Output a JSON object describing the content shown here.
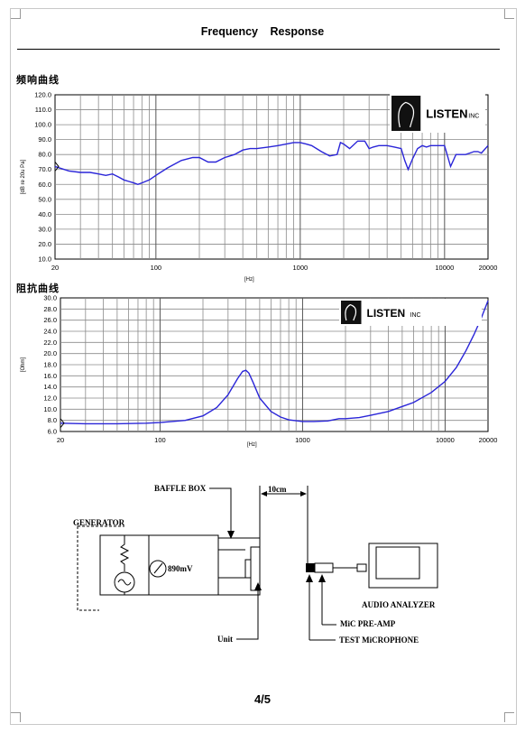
{
  "header": {
    "title": "Frequency    Response"
  },
  "sections": {
    "frequency_title": "频响曲线",
    "impedance_title": "阻抗曲线"
  },
  "logo": {
    "brand": "LISTEN",
    "suffix": "INC"
  },
  "chart_data": [
    {
      "type": "line",
      "title": "频响曲线",
      "xlabel": "[Hz]",
      "ylabel": "[dB re 20u Pa]",
      "xscale": "log",
      "xlim": [
        20,
        20000
      ],
      "ylim": [
        10,
        120
      ],
      "xticks": [
        "20",
        "100",
        "1000",
        "10000",
        "20000"
      ],
      "yticks": [
        "120.0",
        "110.0",
        "100.0",
        "90.0",
        "80.0",
        "70.0",
        "60.0",
        "50.0",
        "40.0",
        "30.0",
        "20.0",
        "10.0"
      ],
      "grid": true,
      "line_color": "#2a25d8",
      "series": [
        {
          "x": [
            20,
            25,
            30,
            35,
            40,
            45,
            50,
            55,
            60,
            65,
            70,
            75,
            80,
            90,
            100,
            120,
            150,
            180,
            200,
            230,
            260,
            300,
            350,
            400,
            450,
            500,
            600,
            700,
            800,
            900,
            1000,
            1100,
            1200,
            1400,
            1600,
            1800,
            1900,
            2000,
            2200,
            2500,
            2800,
            3000,
            3200,
            3500,
            4000,
            4500,
            5000,
            5300,
            5600,
            6000,
            6500,
            7000,
            7500,
            8000,
            9000,
            10000,
            11000,
            12000,
            13000,
            14000,
            15000,
            16000,
            17000,
            18000,
            20000
          ],
          "y": [
            72,
            69,
            68,
            68,
            67,
            66,
            67,
            65,
            63,
            62,
            61,
            60,
            61,
            63,
            66,
            71,
            76,
            78,
            78,
            75,
            75,
            78,
            80,
            83,
            84,
            84,
            85,
            86,
            87,
            88,
            88,
            87,
            86,
            82,
            79,
            80,
            88,
            87,
            84,
            89,
            89,
            84,
            85,
            86,
            86,
            85,
            84,
            76,
            70,
            77,
            84,
            86,
            85,
            86,
            86,
            86,
            72,
            80,
            80,
            80,
            81,
            82,
            82,
            81,
            86
          ]
        }
      ]
    },
    {
      "type": "line",
      "title": "阻抗曲线",
      "xlabel": "[Hz]",
      "ylabel": "[Ohm]",
      "xscale": "log",
      "xlim": [
        20,
        20000
      ],
      "ylim": [
        6,
        30
      ],
      "xticks": [
        "20",
        "100",
        "1000",
        "10000",
        "20000"
      ],
      "yticks": [
        "30.0",
        "28.0",
        "26.0",
        "24.0",
        "22.0",
        "20.0",
        "18.0",
        "16.0",
        "14.0",
        "12.0",
        "10.0",
        "8.0",
        "6.0"
      ],
      "grid": true,
      "line_color": "#2a25d8",
      "series": [
        {
          "x": [
            20,
            30,
            50,
            80,
            100,
            150,
            200,
            250,
            300,
            350,
            380,
            400,
            420,
            450,
            500,
            600,
            700,
            800,
            1000,
            1200,
            1500,
            1800,
            2000,
            2500,
            3000,
            4000,
            5000,
            6000,
            8000,
            10000,
            12000,
            14000,
            16000,
            18000,
            20000
          ],
          "y": [
            7.5,
            7.4,
            7.4,
            7.5,
            7.6,
            8.0,
            8.8,
            10.3,
            12.6,
            15.5,
            16.8,
            17.0,
            16.5,
            14.8,
            12.0,
            9.6,
            8.6,
            8.1,
            7.8,
            7.8,
            7.9,
            8.3,
            8.3,
            8.5,
            8.9,
            9.6,
            10.5,
            11.2,
            13.0,
            15.0,
            17.5,
            20.5,
            23.5,
            26.5,
            29.5
          ]
        }
      ]
    }
  ],
  "diagram": {
    "baffle_box": "BAFFLE BOX",
    "distance": "10cm",
    "generator": "GENERATOR",
    "voltage": "890mV",
    "unit": "Unit",
    "audio_analyzer": "AUDIO ANALYZER",
    "mic_preamp": "MiC PRE-AMP",
    "test_microphone": "TEST MiCROPHONE"
  },
  "footer": {
    "page": "4/5"
  }
}
